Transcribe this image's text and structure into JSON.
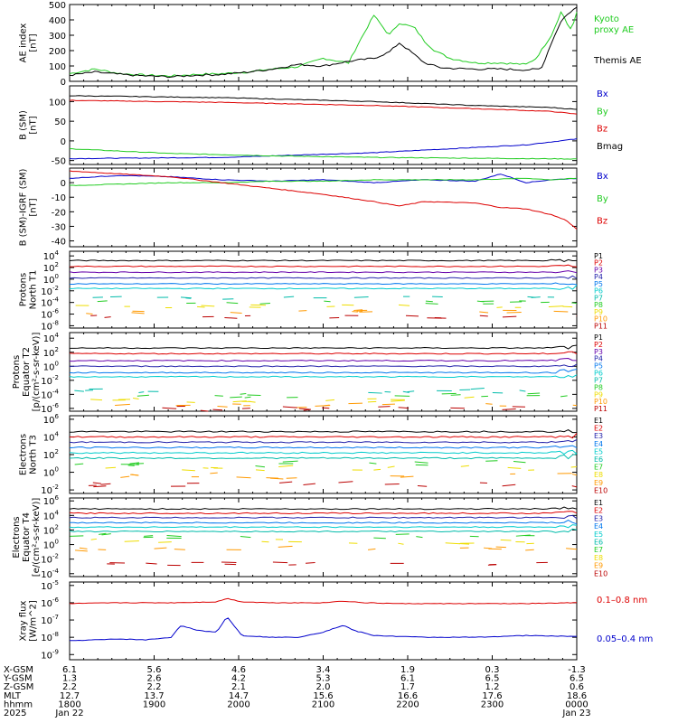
{
  "colors": {
    "black": "#000000",
    "red": "#dd0000",
    "green": "#22cc22",
    "blue": "#0000cc",
    "purple": "#6600aa",
    "navy": "#2222aa",
    "dodger": "#0077ee",
    "cyan": "#00cccc",
    "teal": "#00bbaa",
    "green2": "#22cc22",
    "gold": "#eedd00",
    "orange": "#ff9900",
    "orangered": "#ff5500",
    "darkred": "#bb0000"
  },
  "chart_data": [
    {
      "type": "line",
      "panel": "ae",
      "ylabel": [
        "AE index",
        "[nT]"
      ],
      "ylim": [
        0,
        500
      ],
      "yticks": [
        "0",
        "100",
        "200",
        "300",
        "400",
        "500"
      ],
      "series": [
        {
          "name": "Kyoto proxy AE",
          "color": "green",
          "x": [
            0,
            0.05,
            0.1,
            0.15,
            0.2,
            0.25,
            0.3,
            0.35,
            0.4,
            0.45,
            0.5,
            0.55,
            0.57,
            0.6,
            0.63,
            0.65,
            0.68,
            0.7,
            0.72,
            0.75,
            0.8,
            0.85,
            0.9,
            0.92,
            0.95,
            0.97,
            0.98,
            0.99,
            1.0
          ],
          "y": [
            50,
            80,
            50,
            40,
            35,
            45,
            50,
            60,
            80,
            95,
            150,
            120,
            250,
            430,
            300,
            380,
            350,
            260,
            200,
            150,
            120,
            120,
            110,
            150,
            300,
            460,
            380,
            330,
            450
          ]
        },
        {
          "name": "Themis AE",
          "color": "black",
          "x": [
            0,
            0.05,
            0.1,
            0.15,
            0.2,
            0.25,
            0.3,
            0.35,
            0.4,
            0.45,
            0.5,
            0.55,
            0.6,
            0.63,
            0.65,
            0.67,
            0.7,
            0.73,
            0.75,
            0.8,
            0.85,
            0.9,
            0.93,
            0.95,
            0.97,
            0.99,
            1.0
          ],
          "y": [
            40,
            60,
            45,
            35,
            30,
            40,
            45,
            60,
            80,
            110,
            100,
            130,
            150,
            190,
            250,
            200,
            120,
            90,
            85,
            80,
            80,
            75,
            80,
            250,
            400,
            460,
            480
          ]
        }
      ]
    },
    {
      "type": "line",
      "panel": "bsm",
      "ylabel": [
        "B (SM)",
        "[nT]"
      ],
      "ylim": [
        -60,
        140
      ],
      "yticks": [
        "-50",
        "0",
        "50",
        "100"
      ],
      "tick_values": [
        -50,
        0,
        50,
        100
      ],
      "series": [
        {
          "name": "Bx",
          "color": "blue",
          "x": [
            0,
            0.3,
            0.6,
            0.9,
            1.0
          ],
          "y": [
            -45,
            -42,
            -30,
            -10,
            5
          ]
        },
        {
          "name": "By",
          "color": "green",
          "x": [
            0,
            0.2,
            0.4,
            0.6,
            0.8,
            1.0
          ],
          "y": [
            -20,
            -32,
            -38,
            -42,
            -44,
            -46
          ]
        },
        {
          "name": "Bz",
          "color": "red",
          "x": [
            0,
            0.3,
            0.6,
            0.8,
            0.95,
            1.0
          ],
          "y": [
            103,
            98,
            90,
            82,
            75,
            68
          ]
        },
        {
          "name": "Bmag",
          "color": "black",
          "x": [
            0,
            0.3,
            0.6,
            0.8,
            0.95,
            1.0
          ],
          "y": [
            115,
            110,
            100,
            90,
            85,
            80
          ]
        }
      ]
    },
    {
      "type": "line",
      "panel": "bdiff",
      "ylabel": [
        "B (SM)-IGRF (SM)",
        "[nT]"
      ],
      "ylim": [
        -44,
        10
      ],
      "yticks": [
        "-40",
        "-30",
        "-20",
        "-10",
        "0"
      ],
      "tick_values": [
        -40,
        -30,
        -20,
        -10,
        0
      ],
      "series": [
        {
          "name": "Bx",
          "color": "blue",
          "x": [
            0,
            0.1,
            0.2,
            0.3,
            0.4,
            0.5,
            0.6,
            0.7,
            0.8,
            0.85,
            0.9,
            0.95,
            1.0
          ],
          "y": [
            3,
            5,
            4,
            2,
            1,
            2,
            0,
            2,
            1,
            6,
            0,
            2,
            3
          ]
        },
        {
          "name": "By",
          "color": "green",
          "x": [
            0,
            0.1,
            0.2,
            0.3,
            0.4,
            0.5,
            0.6,
            0.7,
            0.8,
            0.9,
            0.95,
            1.0
          ],
          "y": [
            -2,
            -1,
            0,
            0,
            1,
            1,
            2,
            2,
            2,
            3,
            2,
            3
          ]
        },
        {
          "name": "Bz",
          "color": "red",
          "x": [
            0,
            0.1,
            0.2,
            0.3,
            0.4,
            0.5,
            0.6,
            0.65,
            0.7,
            0.8,
            0.85,
            0.9,
            0.95,
            0.98,
            1.0
          ],
          "y": [
            8,
            6,
            4,
            0,
            -4,
            -8,
            -13,
            -16,
            -13,
            -14,
            -17,
            -18,
            -22,
            -26,
            -32
          ]
        }
      ]
    },
    {
      "type": "line",
      "panel": "pn",
      "ylabel": [
        "Protons",
        "North T1"
      ],
      "log": true,
      "ylim": [
        -8.4,
        4.8
      ],
      "yticks": [
        "10",
        "10",
        "10",
        "10",
        "10",
        "10",
        "10"
      ],
      "tick_exps": [
        "4",
        "2",
        "0",
        "-2",
        "-4",
        "-6",
        "-8"
      ],
      "tick_values": [
        4,
        2,
        0,
        -2,
        -4,
        -6,
        -8
      ],
      "channels": [
        "P1",
        "P2",
        "P3",
        "P4",
        "P5",
        "P6",
        "P7",
        "P8",
        "P9",
        "P10",
        "P11"
      ],
      "channel_colors": [
        "black",
        "red",
        "purple",
        "navy",
        "dodger",
        "cyan",
        "teal",
        "green2",
        "gold",
        "orange",
        "darkred"
      ],
      "levels": [
        3.2,
        2.2,
        1.2,
        0.2,
        -0.8,
        -1.6,
        -3.2,
        -4,
        -4.6,
        -5.6,
        -6.4
      ]
    },
    {
      "type": "line",
      "panel": "pe",
      "ylabel": [
        "Protons",
        "Equator T2",
        "[p/(cm²-s-sr-keV)]"
      ],
      "log": true,
      "ylim": [
        -6.4,
        4.8
      ],
      "yticks": [
        "10",
        "10",
        "10",
        "10",
        "10",
        "10"
      ],
      "tick_exps": [
        "4",
        "2",
        "0",
        "-2",
        "-4",
        "-6"
      ],
      "tick_values": [
        4,
        2,
        0,
        -2,
        -4,
        -6
      ],
      "channels": [
        "P1",
        "P2",
        "P3",
        "P4",
        "P5",
        "P6",
        "P7",
        "P8",
        "P9",
        "P10",
        "P11"
      ],
      "channel_colors": [
        "black",
        "red",
        "purple",
        "navy",
        "dodger",
        "cyan",
        "teal",
        "green2",
        "gold",
        "orange",
        "darkred"
      ],
      "levels": [
        2.6,
        1.8,
        0.8,
        0,
        -0.9,
        -1.5,
        -3.5,
        -4.2,
        -4.8,
        -5.6,
        -6
      ]
    },
    {
      "type": "line",
      "panel": "en",
      "ylabel": [
        "Electrons",
        "North T3"
      ],
      "log": true,
      "ylim": [
        -2.4,
        6.4
      ],
      "yticks": [
        "10",
        "10",
        "10",
        "10",
        "10"
      ],
      "tick_exps": [
        "6",
        "4",
        "2",
        "0",
        "-2"
      ],
      "tick_values": [
        6,
        4,
        2,
        0,
        -2
      ],
      "channels": [
        "E1",
        "E2",
        "E3",
        "E4",
        "E5",
        "E6",
        "E7",
        "E8",
        "E9",
        "E10"
      ],
      "channel_colors": [
        "black",
        "red",
        "navy",
        "dodger",
        "cyan",
        "teal",
        "green2",
        "gold",
        "orange",
        "darkred"
      ],
      "levels": [
        4.6,
        4.0,
        3.4,
        2.8,
        2.2,
        1.6,
        1.0,
        0.4,
        -0.4,
        -1.4
      ]
    },
    {
      "type": "line",
      "panel": "ee",
      "ylabel": [
        "Electrons",
        "Equator T4",
        "[e/(cm²-s-sr-keV)]"
      ],
      "log": true,
      "ylim": [
        -4.4,
        6.4
      ],
      "yticks": [
        "10",
        "10",
        "10",
        "10",
        "10",
        "10"
      ],
      "tick_exps": [
        "6",
        "4",
        "2",
        "0",
        "-2",
        "-4"
      ],
      "tick_values": [
        6,
        4,
        2,
        0,
        -2,
        -4
      ],
      "channels": [
        "E1",
        "E2",
        "E3",
        "E4",
        "E5",
        "E6",
        "E7",
        "E8",
        "E9",
        "E10"
      ],
      "channel_colors": [
        "black",
        "red",
        "navy",
        "dodger",
        "cyan",
        "teal",
        "green2",
        "gold",
        "orange",
        "darkred"
      ],
      "levels": [
        4.9,
        4.3,
        3.7,
        3.0,
        2.4,
        1.8,
        1.1,
        0.4,
        -0.5,
        -2.6
      ]
    },
    {
      "type": "line",
      "panel": "xray",
      "ylabel": [
        "Xray flux",
        "[W/m^2]"
      ],
      "log": true,
      "ylim": [
        -9.3,
        -4.8
      ],
      "yticks": [
        "10",
        "10",
        "10",
        "10",
        "10"
      ],
      "tick_exps": [
        "-5",
        "-6",
        "-7",
        "-8",
        "-9"
      ],
      "tick_values": [
        -5,
        -6,
        -7,
        -8,
        -9
      ],
      "series": [
        {
          "name": "0.1–0.8 nm",
          "color": "red",
          "x": [
            0,
            0.1,
            0.2,
            0.29,
            0.31,
            0.34,
            0.4,
            0.5,
            0.54,
            0.58,
            0.65,
            0.8,
            0.9,
            1.0
          ],
          "y": [
            -6.05,
            -6.0,
            -6.0,
            -5.95,
            -5.75,
            -5.95,
            -6.0,
            -6.0,
            -5.9,
            -6.0,
            -6.05,
            -6.05,
            -6.05,
            -6.0
          ]
        },
        {
          "name": "0.05–0.4 nm",
          "color": "blue",
          "x": [
            0,
            0.05,
            0.1,
            0.15,
            0.2,
            0.22,
            0.25,
            0.29,
            0.31,
            0.34,
            0.4,
            0.45,
            0.5,
            0.54,
            0.56,
            0.6,
            0.7,
            0.8,
            0.9,
            1.0
          ],
          "y": [
            -8.2,
            -8.15,
            -8.1,
            -8.15,
            -8.0,
            -7.3,
            -7.6,
            -7.7,
            -6.8,
            -7.9,
            -8.0,
            -8.0,
            -7.7,
            -7.3,
            -7.6,
            -7.9,
            -8.0,
            -8.0,
            -7.9,
            -7.95
          ]
        }
      ]
    }
  ],
  "orbit_rows": [
    {
      "label": "X-GSM",
      "values": [
        "6.1",
        "5.6",
        "4.6",
        "3.4",
        "1.9",
        "0.3",
        "-1.3"
      ]
    },
    {
      "label": "Y-GSM",
      "values": [
        "1.3",
        "2.6",
        "4.2",
        "5.3",
        "6.1",
        "6.5",
        "6.5"
      ]
    },
    {
      "label": "Z-GSM",
      "values": [
        "2.2",
        "2.2",
        "2.1",
        "2.0",
        "1.7",
        "1.2",
        "0.6"
      ]
    },
    {
      "label": "MLT",
      "values": [
        "12.7",
        "13.7",
        "14.7",
        "15.6",
        "16.6",
        "17.6",
        "18.6"
      ]
    },
    {
      "label": "hhmm",
      "values": [
        "1800",
        "1900",
        "2000",
        "2100",
        "2200",
        "2300",
        "0000"
      ]
    },
    {
      "label": "2025",
      "values": [
        "Jan 22",
        "",
        "",
        "",
        "",
        "",
        "Jan 23"
      ]
    }
  ]
}
